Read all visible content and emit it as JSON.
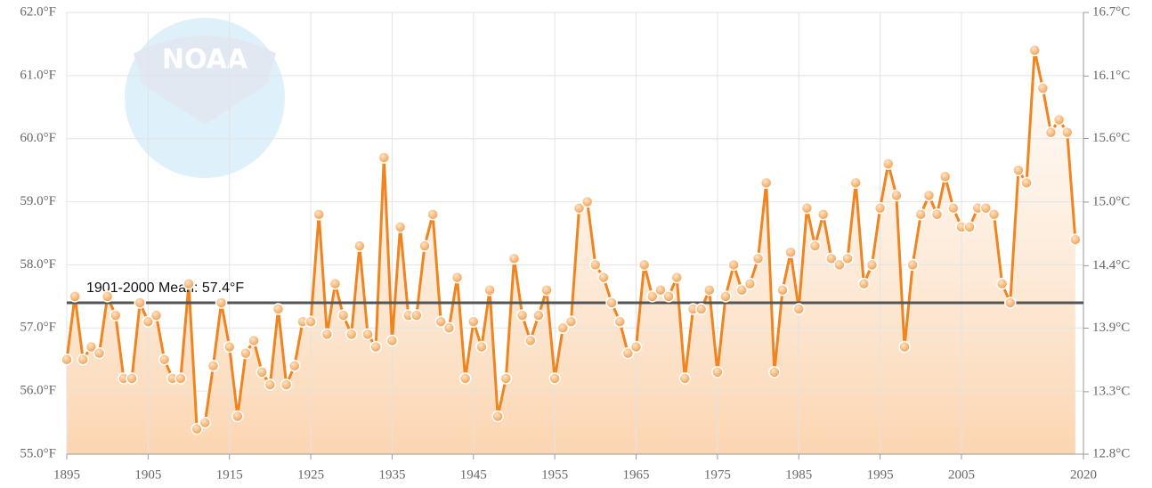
{
  "chart_data": {
    "type": "line",
    "logo": "NOAA",
    "x": [
      1895,
      1896,
      1897,
      1898,
      1899,
      1900,
      1901,
      1902,
      1903,
      1904,
      1905,
      1906,
      1907,
      1908,
      1909,
      1910,
      1911,
      1912,
      1913,
      1914,
      1915,
      1916,
      1917,
      1918,
      1919,
      1920,
      1921,
      1922,
      1923,
      1924,
      1925,
      1926,
      1927,
      1928,
      1929,
      1930,
      1931,
      1932,
      1933,
      1934,
      1935,
      1936,
      1937,
      1938,
      1939,
      1940,
      1941,
      1942,
      1943,
      1944,
      1945,
      1946,
      1947,
      1948,
      1949,
      1950,
      1951,
      1952,
      1953,
      1954,
      1955,
      1956,
      1957,
      1958,
      1959,
      1960,
      1961,
      1962,
      1963,
      1964,
      1965,
      1966,
      1967,
      1968,
      1969,
      1970,
      1971,
      1972,
      1973,
      1974,
      1975,
      1976,
      1977,
      1978,
      1979,
      1980,
      1981,
      1982,
      1983,
      1984,
      1985,
      1986,
      1987,
      1988,
      1989,
      1990,
      1991,
      1992,
      1993,
      1994,
      1995,
      1996,
      1997,
      1998,
      1999,
      2000,
      2001,
      2002,
      2003,
      2004,
      2005,
      2006,
      2007,
      2008,
      2009,
      2010,
      2011,
      2012,
      2013,
      2014,
      2015,
      2016,
      2017,
      2018,
      2019
    ],
    "series": [
      {
        "color": "#f0841f",
        "values": [
          56.5,
          57.5,
          56.5,
          56.7,
          56.6,
          57.5,
          57.2,
          56.2,
          56.2,
          57.4,
          57.1,
          57.2,
          56.5,
          56.2,
          56.2,
          57.7,
          55.4,
          55.5,
          56.4,
          57.4,
          56.7,
          55.6,
          56.6,
          56.8,
          56.3,
          56.1,
          57.3,
          56.1,
          56.4,
          57.1,
          57.1,
          58.8,
          56.9,
          57.7,
          57.2,
          56.9,
          58.3,
          56.9,
          56.7,
          59.7,
          56.8,
          58.6,
          57.2,
          57.2,
          58.3,
          58.8,
          57.1,
          57.0,
          57.8,
          56.2,
          57.1,
          56.7,
          57.6,
          55.6,
          56.2,
          58.1,
          57.2,
          56.8,
          57.2,
          57.6,
          56.2,
          57.0,
          57.1,
          58.9,
          59.0,
          58.0,
          57.8,
          57.4,
          57.1,
          56.6,
          56.7,
          58.0,
          57.5,
          57.6,
          57.5,
          57.8,
          56.2,
          57.3,
          57.3,
          57.6,
          56.3,
          57.5,
          58.0,
          57.6,
          57.7,
          58.1,
          59.3,
          56.3,
          57.6,
          58.2,
          57.3,
          58.9,
          58.3,
          58.8,
          58.1,
          58.0,
          58.1,
          59.3,
          57.7,
          58.0,
          58.9,
          59.6,
          59.1,
          56.7,
          58.0,
          58.8,
          59.1,
          58.8,
          59.4,
          58.9,
          58.6,
          58.6,
          58.9,
          58.9,
          58.8,
          57.7,
          57.4,
          59.5,
          59.3,
          61.4,
          60.8,
          60.1,
          60.3,
          60.1,
          58.4
        ]
      }
    ],
    "mean": {
      "value": 57.4,
      "label": "1901-2000 Mean: 57.4°F"
    },
    "xlim": [
      1895,
      2020
    ],
    "xticks": [
      1895,
      1905,
      1915,
      1925,
      1935,
      1945,
      1955,
      1965,
      1975,
      1985,
      1995,
      2005,
      2020
    ],
    "ylim": [
      55,
      62
    ],
    "yticks": [
      {
        "value": 55,
        "label": "55.0°F"
      },
      {
        "value": 56,
        "label": "56.0°F"
      },
      {
        "value": 57,
        "label": "57.0°F"
      },
      {
        "value": 58,
        "label": "58.0°F"
      },
      {
        "value": 59,
        "label": "59.0°F"
      },
      {
        "value": 60,
        "label": "60.0°F"
      },
      {
        "value": 61,
        "label": "61.0°F"
      },
      {
        "value": 62,
        "label": "62.0°F"
      }
    ],
    "y2lim": [
      12.78,
      16.67
    ],
    "y2ticks": [
      {
        "value": 12.78,
        "label": "12.8°C"
      },
      {
        "value": 13.33,
        "label": "13.3°C"
      },
      {
        "value": 13.89,
        "label": "13.9°C"
      },
      {
        "value": 14.44,
        "label": "14.4°C"
      },
      {
        "value": 15.0,
        "label": "15.0°C"
      },
      {
        "value": 15.56,
        "label": "15.6°C"
      },
      {
        "value": 16.11,
        "label": "16.1°C"
      },
      {
        "value": 16.67,
        "label": "16.7°C"
      }
    ],
    "grid": true
  }
}
